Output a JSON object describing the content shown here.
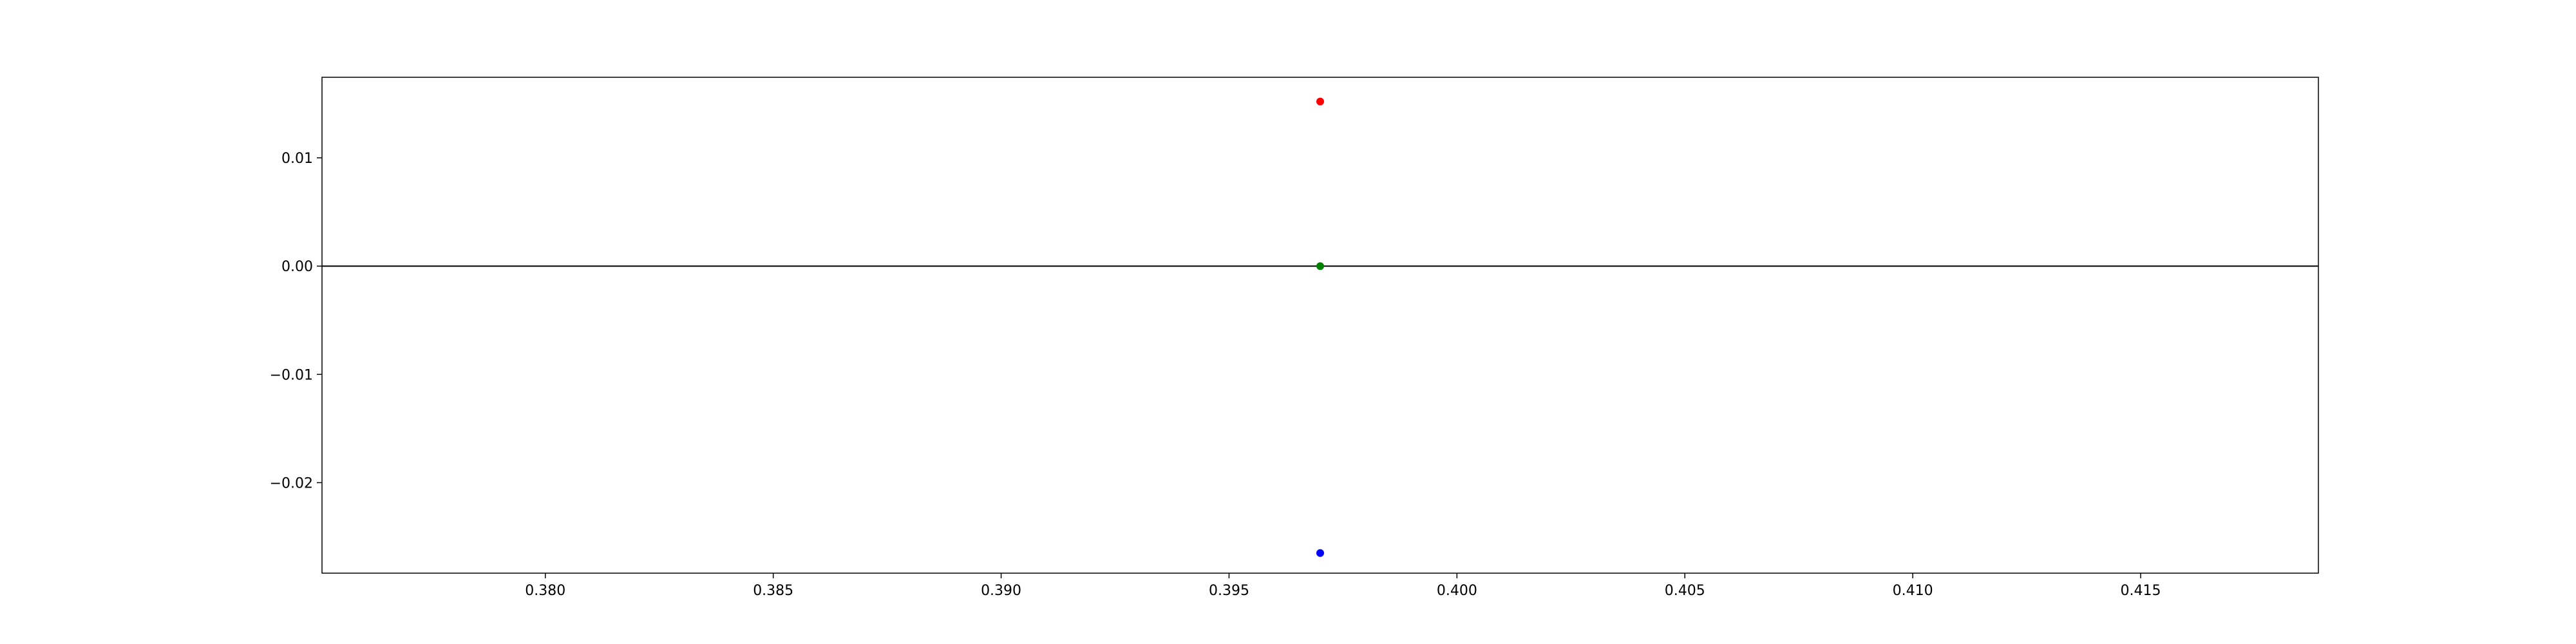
{
  "chart_data": {
    "type": "scatter",
    "xlim": [
      0.3751,
      0.4189
    ],
    "ylim": [
      -0.02836,
      0.01744
    ],
    "x_ticks": [
      {
        "value": 0.38,
        "label": "0.380"
      },
      {
        "value": 0.385,
        "label": "0.385"
      },
      {
        "value": 0.39,
        "label": "0.390"
      },
      {
        "value": 0.395,
        "label": "0.395"
      },
      {
        "value": 0.4,
        "label": "0.400"
      },
      {
        "value": 0.405,
        "label": "0.405"
      },
      {
        "value": 0.41,
        "label": "0.410"
      },
      {
        "value": 0.415,
        "label": "0.415"
      }
    ],
    "y_ticks": [
      {
        "value": 0.01,
        "label": "0.01"
      },
      {
        "value": 0.0,
        "label": "0.00"
      },
      {
        "value": -0.01,
        "label": "−0.01"
      },
      {
        "value": -0.02,
        "label": "−0.02"
      }
    ],
    "hline": {
      "y": 0,
      "color": "#000000"
    },
    "grid": false,
    "points": [
      {
        "x": 0.397,
        "y": 0.0152,
        "color": "#ff0000"
      },
      {
        "x": 0.397,
        "y": 0.0,
        "color": "#008000"
      },
      {
        "x": 0.397,
        "y": -0.0265,
        "color": "#0000ff"
      }
    ]
  }
}
